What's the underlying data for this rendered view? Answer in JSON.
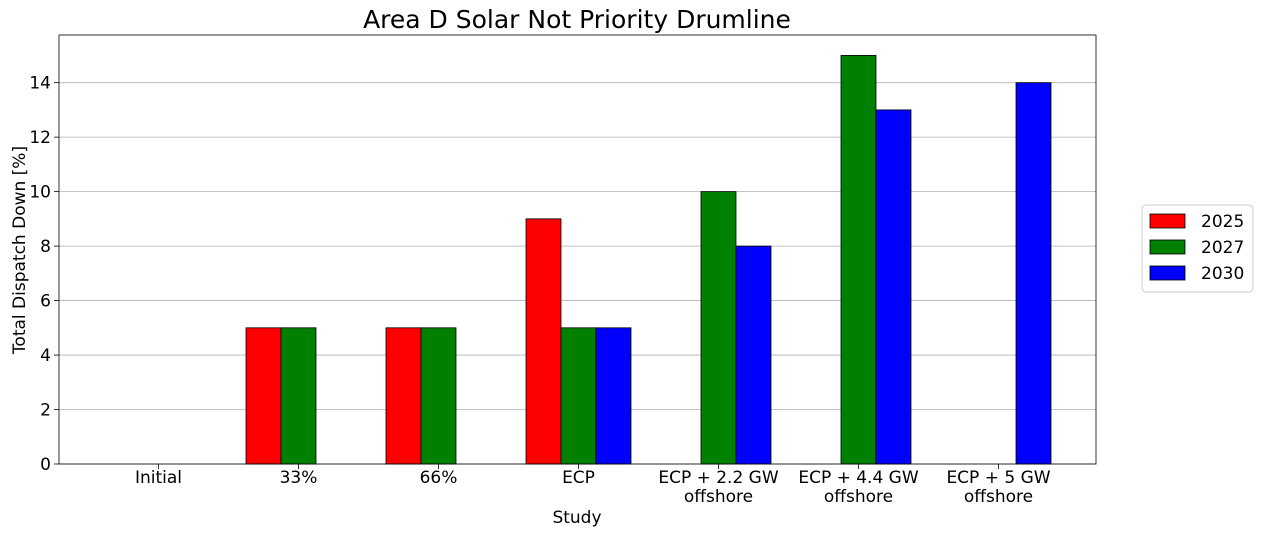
{
  "chart_data": {
    "type": "bar",
    "title": "Area D Solar Not Priority Drumline",
    "xlabel": "Study",
    "ylabel": "Total Dispatch Down [%]",
    "ylim": [
      0,
      15.75
    ],
    "yticks": [
      0,
      2,
      4,
      6,
      8,
      10,
      12,
      14
    ],
    "grid": "horizontal",
    "legend_position": "right",
    "categories": [
      [
        "Initial"
      ],
      [
        "33%"
      ],
      [
        "66%"
      ],
      [
        "ECP"
      ],
      [
        "ECP + 2.2 GW",
        "offshore"
      ],
      [
        "ECP + 4.4 GW",
        "offshore"
      ],
      [
        "ECP + 5 GW",
        "offshore"
      ]
    ],
    "series": [
      {
        "name": "2025",
        "color": "#ff0000",
        "values": [
          0,
          5,
          5,
          9,
          0,
          0,
          0
        ]
      },
      {
        "name": "2027",
        "color": "#008000",
        "values": [
          0,
          5,
          5,
          5,
          10,
          15,
          0
        ]
      },
      {
        "name": "2030",
        "color": "#0000ff",
        "values": [
          0,
          0,
          0,
          5,
          8,
          13,
          14
        ]
      }
    ]
  }
}
